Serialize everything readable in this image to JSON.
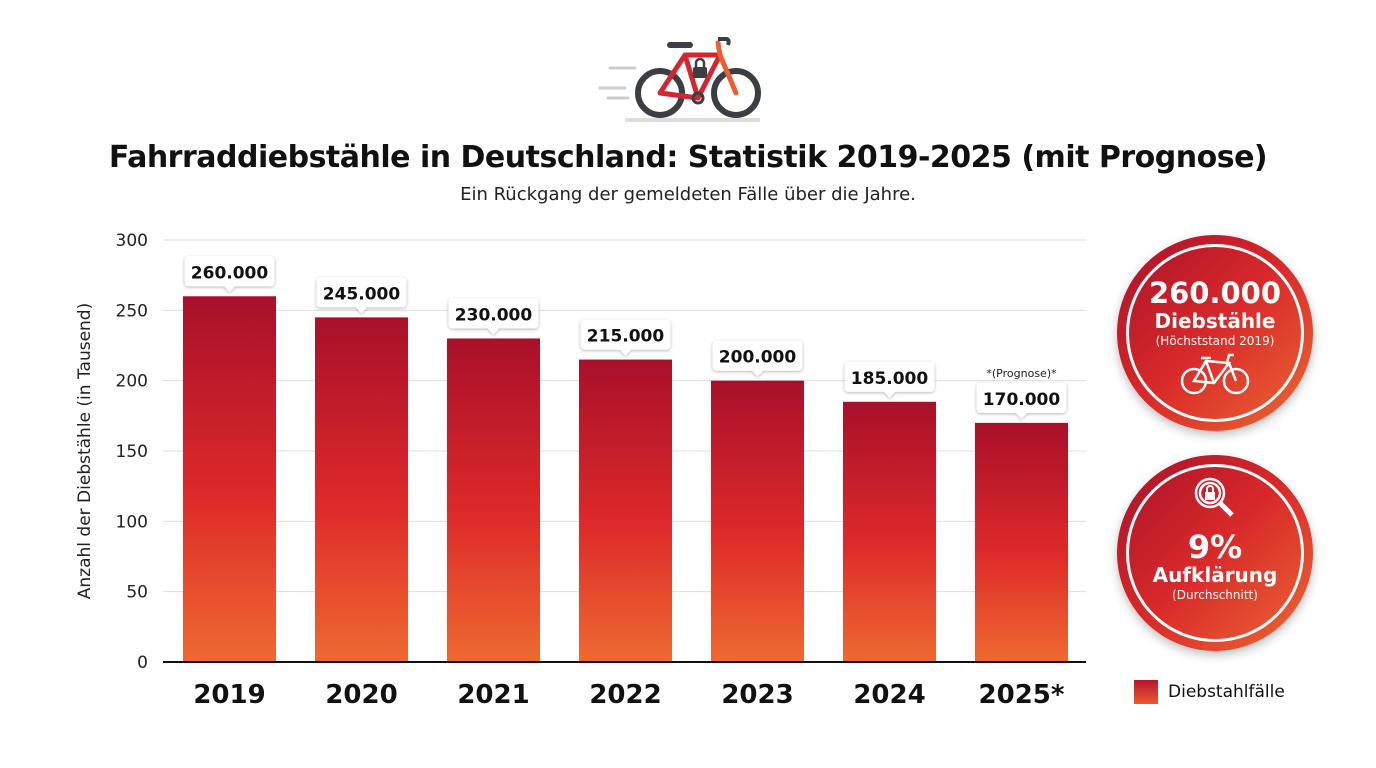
{
  "header": {
    "title": "Fahrraddiebstähle in Deutschland: Statistik 2019-2025 (mit Prognose)",
    "subtitle": "Ein Rückgang der gemeldeten Fälle über die Jahre.",
    "icon": "bicycle-with-lock-icon"
  },
  "chart_data": {
    "type": "bar",
    "categories": [
      "2019",
      "2020",
      "2021",
      "2022",
      "2023",
      "2024",
      "2025*"
    ],
    "series": [
      {
        "name": "Diebstahlfälle",
        "values": [
          260,
          245,
          230,
          215,
          200,
          185,
          170
        ]
      }
    ],
    "data_labels": [
      "260.000",
      "245.000",
      "230.000",
      "215.000",
      "200.000",
      "185.000",
      "170.000"
    ],
    "annotations": [
      {
        "category": "2025*",
        "text": "*(Prognose)*"
      }
    ],
    "ylabel": "Anzahl der Diebstähle (in Tausend)",
    "xlabel": "",
    "ylim": [
      0,
      300
    ],
    "yticks": [
      0,
      50,
      100,
      150,
      200,
      250,
      300
    ],
    "grid": true,
    "legend": "bottom-right",
    "colors": {
      "bar_top": "#a8102a",
      "bar_mid": "#de2a2a",
      "bar_bottom": "#ee6a30"
    }
  },
  "stats": [
    {
      "value": "260.000",
      "label": "Diebstähle",
      "note": "(Höchststand 2019)",
      "icon": "bicycle-icon"
    },
    {
      "value": "9%",
      "label": "Aufklärung",
      "note": "(Durchschnitt)",
      "icon": "magnifier-lock-icon"
    }
  ],
  "legend": {
    "label": "Diebstahlfälle"
  }
}
